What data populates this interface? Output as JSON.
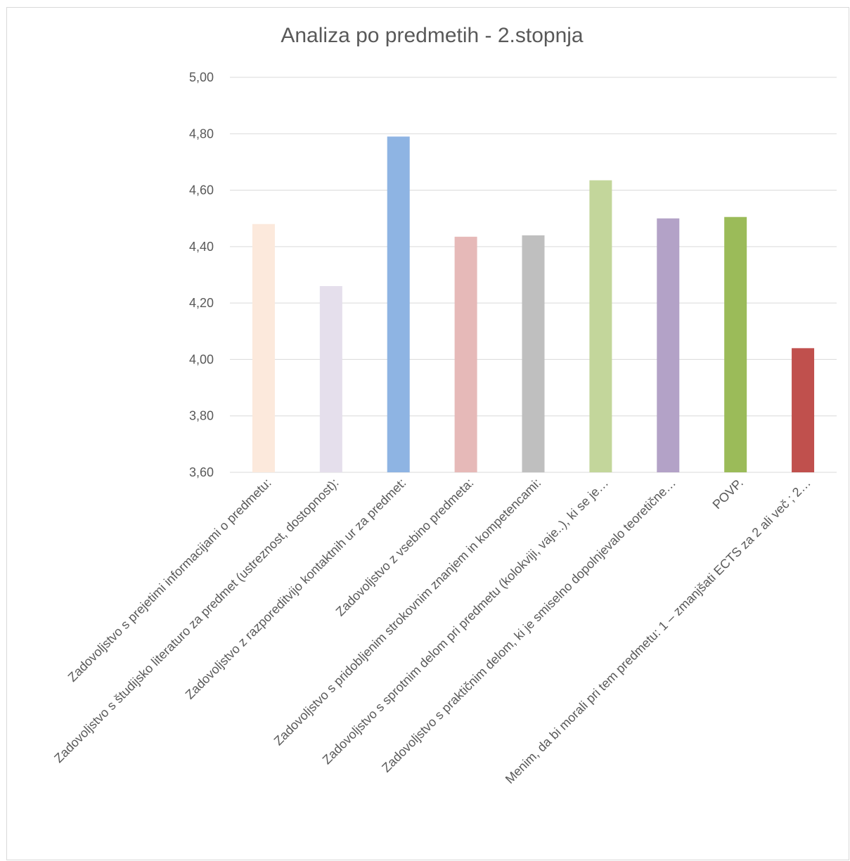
{
  "chart_data": {
    "type": "bar",
    "title": "Analiza po predmetih - 2.stopnja",
    "ylim": [
      3.6,
      5.0
    ],
    "y_ticks": [
      "3,60",
      "3,80",
      "4,00",
      "4,20",
      "4,40",
      "4,60",
      "4,80",
      "5,00"
    ],
    "grid": true,
    "categories": [
      "Zadovoljstvo s prejetimi informacijami o predmetu:",
      "Zadovoljstvo s študijsko literaturo za predmet (ustreznost, dostopnost):",
      "Zadovoljstvo z razporeditvijo kontaktnih ur za predmet:",
      "Zadovoljstvo z vsebino predmeta:",
      "Zadovoljstvo s pridobljenim strokovnim znanjem in kompetencami:",
      "Zadovoljstvo s sprotnim delom pri predmetu (kolokviji, vaje..), ki se je…",
      "Zadovoljstvo s praktičnim delom, ki je smiselno dopolnjevalo teoretične…",
      "POVP.",
      "Menim, da bi morali pri tem predmetu: 1 – zmanjšati ECTS za 2 ali več ; 2…"
    ],
    "values": [
      4.48,
      4.26,
      4.79,
      4.435,
      4.44,
      4.635,
      4.5,
      4.505,
      4.04
    ],
    "colors": [
      "#fce9dc",
      "#e5dfec",
      "#8eb4e3",
      "#e6b9b8",
      "#bfbfbf",
      "#c3d69b",
      "#b3a2c7",
      "#9bbb59",
      "#c0504d"
    ]
  }
}
